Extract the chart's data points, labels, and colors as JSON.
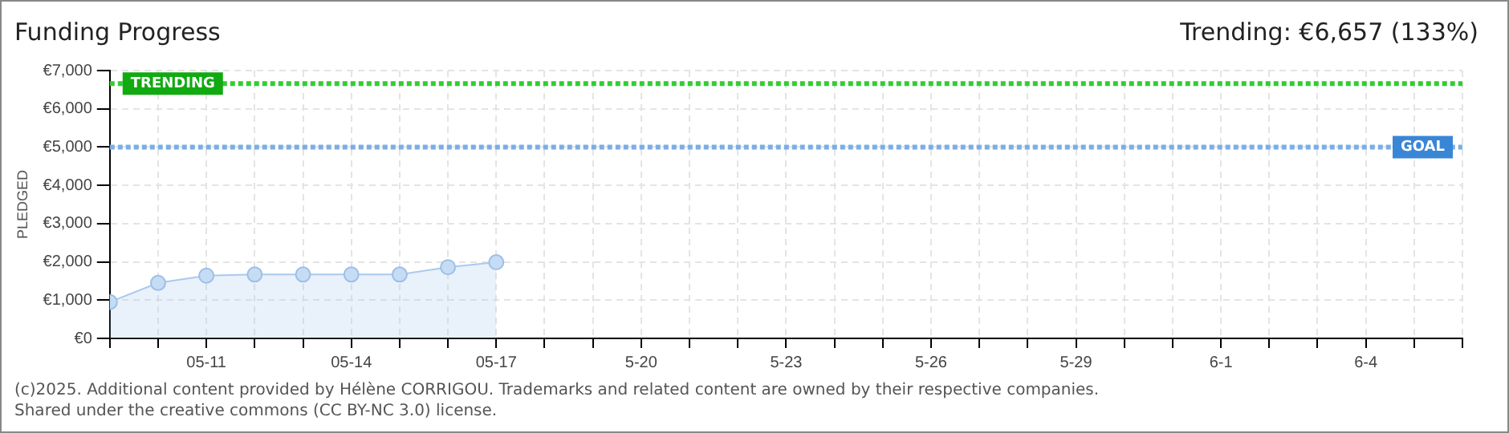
{
  "chart_data": {
    "type": "area",
    "title": "Funding Progress",
    "subtitle": "Trending: €6,657 (133%)",
    "ylabel": "PLEDGED",
    "x": [
      "--05-09",
      "--05-10",
      "--05-11",
      "--05-12",
      "--05-13",
      "--05-14",
      "--05-15",
      "--05-16",
      "--05-17"
    ],
    "series": [
      {
        "color": "#a9c9ef",
        "values": [
          950,
          1450,
          1640,
          1670,
          1670,
          1670,
          1670,
          1860,
          1990
        ]
      }
    ],
    "marker": "circle",
    "grid": true,
    "xlim": [
      "--05-09",
      "--06-06"
    ],
    "xticks": [
      {
        "value": "--05-09",
        "label": null
      },
      {
        "value": "--05-10",
        "label": null
      },
      {
        "value": "--05-11",
        "label": "05-11"
      },
      {
        "value": "--05-12",
        "label": null
      },
      {
        "value": "--05-13",
        "label": null
      },
      {
        "value": "--05-14",
        "label": "05-14"
      },
      {
        "value": "--05-15",
        "label": null
      },
      {
        "value": "--05-16",
        "label": null
      },
      {
        "value": "--05-17",
        "label": "05-17"
      },
      {
        "value": "--05-18",
        "label": null
      },
      {
        "value": "--05-19",
        "label": null
      },
      {
        "value": "--05-20",
        "label": "5-20"
      },
      {
        "value": "--05-21",
        "label": null
      },
      {
        "value": "--05-22",
        "label": null
      },
      {
        "value": "--05-23",
        "label": "5-23"
      },
      {
        "value": "--05-24",
        "label": null
      },
      {
        "value": "--05-25",
        "label": null
      },
      {
        "value": "--05-26",
        "label": "5-26"
      },
      {
        "value": "--05-27",
        "label": null
      },
      {
        "value": "--05-28",
        "label": null
      },
      {
        "value": "--05-29",
        "label": "5-29"
      },
      {
        "value": "--05-30",
        "label": null
      },
      {
        "value": "--05-31",
        "label": null
      },
      {
        "value": "--06-01",
        "label": "6-1"
      },
      {
        "value": "--06-02",
        "label": null
      },
      {
        "value": "--06-03",
        "label": null
      },
      {
        "value": "--06-04",
        "label": "6-4"
      },
      {
        "value": "--06-05",
        "label": null
      },
      {
        "value": "--06-06",
        "label": null
      }
    ],
    "ylim": [
      0,
      7000
    ],
    "yticks": [
      {
        "value": 0,
        "label": "€0"
      },
      {
        "value": 1000,
        "label": "€1,000"
      },
      {
        "value": 2000,
        "label": "€2,000"
      },
      {
        "value": 3000,
        "label": "€3,000"
      },
      {
        "value": 4000,
        "label": "€4,000"
      },
      {
        "value": 5000,
        "label": "€5,000"
      },
      {
        "value": 6000,
        "label": "€6,000"
      },
      {
        "value": 7000,
        "label": "€7,000"
      }
    ],
    "ref_lines": [
      {
        "axis": "y",
        "value": 6657,
        "label": "TRENDING",
        "color": "#33cc33",
        "line_style": "dotted"
      },
      {
        "axis": "y",
        "value": 5000,
        "label": "GOAL",
        "color": "#7aaee6",
        "line_style": "dotted"
      }
    ],
    "annotations": [
      "(c)2025. Additional content provided by Hélène CORRIGOU. Trademarks and related content are owned by their respective companies.",
      "Shared under the creative commons (CC BY-NC 3.0) license."
    ]
  }
}
